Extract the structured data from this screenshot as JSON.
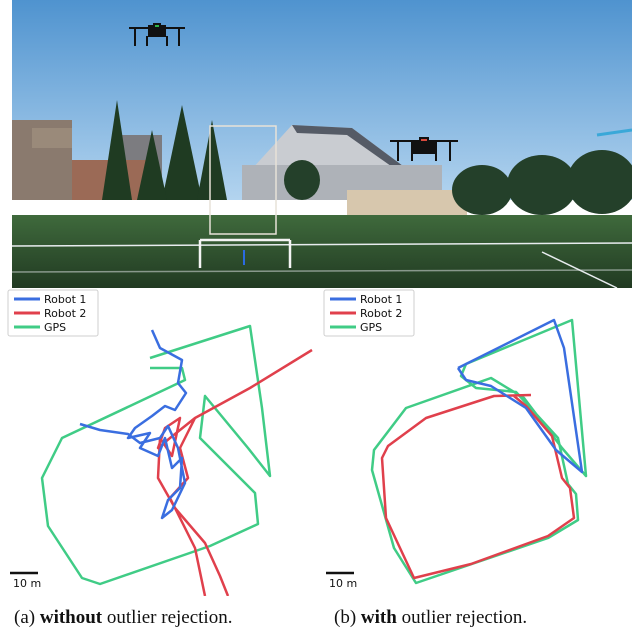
{
  "colors": {
    "robot1": "#3a6ee0",
    "robot2": "#e0404c",
    "gps": "#40cc86",
    "sky_top": "#5b9ed6",
    "sky_bottom": "#a8cdef",
    "grass": "#36583a"
  },
  "legend": {
    "robot1": "Robot 1",
    "robot2": "Robot 2",
    "gps": "GPS"
  },
  "scalebar_label": "10 m",
  "panel_a": {
    "label": "(a)",
    "bold": "without",
    "rest": "outlier rejection."
  },
  "panel_b": {
    "label": "(b)",
    "bold": "with",
    "rest": "outlier rejection."
  },
  "photo": {
    "description_icons": [
      "drone-icon",
      "drone-icon",
      "soccer-goal-icon",
      "bleachers-icon",
      "trees-icon"
    ]
  }
}
